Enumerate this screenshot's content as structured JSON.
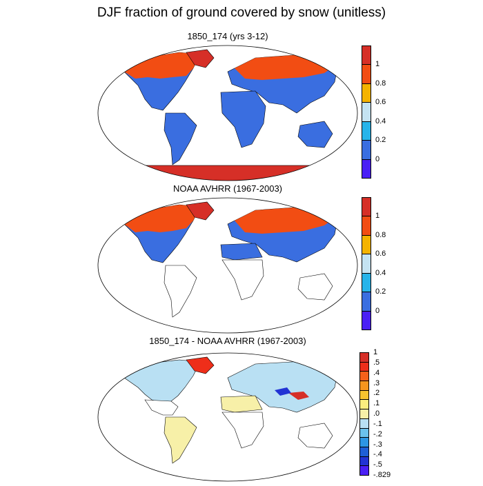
{
  "title": "DJF fraction of ground covered by snow (unitless)",
  "panels": [
    {
      "title": "1850_174 (yrs 3-12)"
    },
    {
      "title": "NOAA AVHRR (1967-2003)"
    },
    {
      "title": "1850_174 - NOAA AVHRR (1967-2003)"
    }
  ],
  "colorbar_abs": {
    "labels": [
      "1",
      "0.8",
      "0.6",
      "0.4",
      "0.2",
      "0"
    ],
    "colors": [
      "#d62f27",
      "#f24d13",
      "#f4b300",
      "#c4e3f2",
      "#27b4ea",
      "#3a6ee0",
      "#4a1ff5"
    ]
  },
  "colorbar_diff": {
    "labels": [
      "1",
      ".5",
      ".4",
      ".3",
      ".2",
      ".1",
      ".0",
      "-.1",
      "-.2",
      "-.3",
      "-.4",
      "-.5",
      "-.829"
    ],
    "colors": [
      "#d62f27",
      "#ee2e1a",
      "#f5611a",
      "#f6951e",
      "#f6c42f",
      "#fbee7f",
      "#f7f0a8",
      "#b9e0f3",
      "#6bc2ed",
      "#2d96e4",
      "#1e5fd6",
      "#2233d4",
      "#4a1ff5"
    ]
  },
  "colors": {
    "snow_full": "#d62f27",
    "snow_high": "#f24d13",
    "snow_none": "#3a6ee0",
    "diff_zero": "#f7f0a8",
    "diff_neg": "#b9e0f3"
  }
}
